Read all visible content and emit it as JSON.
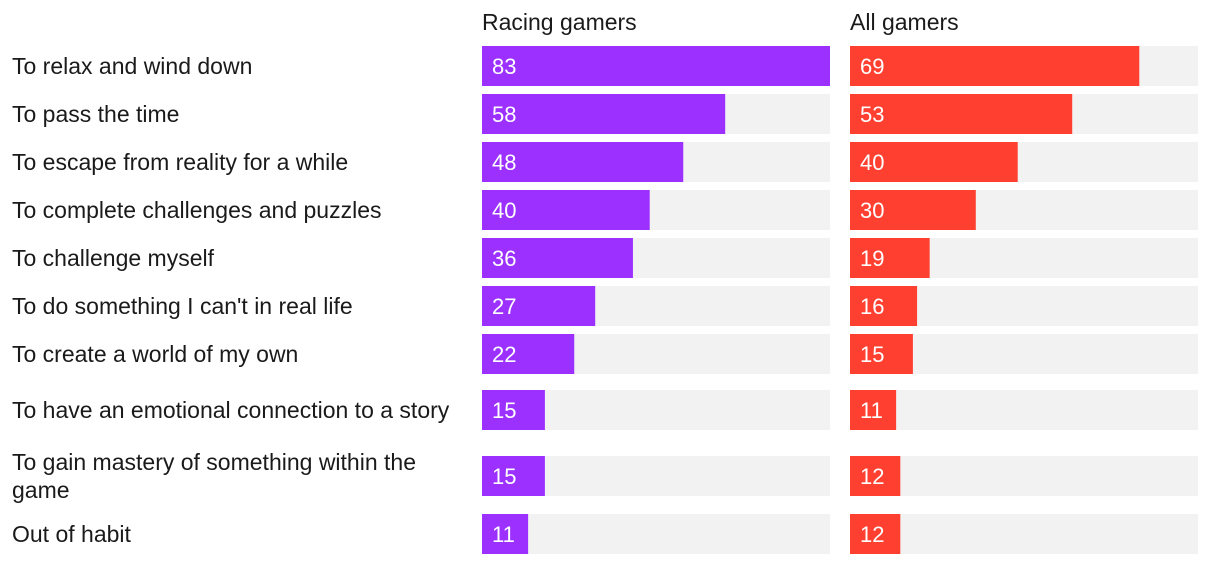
{
  "chart_data": {
    "type": "bar",
    "orientation": "horizontal",
    "title": "",
    "xlabel": "",
    "ylabel": "",
    "xlim": [
      0,
      83
    ],
    "categories": [
      "To relax and wind down",
      "To pass the time",
      "To escape from reality for a while",
      "To complete challenges and puzzles",
      "To challenge myself",
      "To do something I can't in real life",
      "To create a world of my own",
      "To have an emotional connection to a story",
      "To gain mastery of something within the game",
      "Out of habit"
    ],
    "series": [
      {
        "name": "Racing gamers",
        "color": "#9b30ff",
        "values": [
          83,
          58,
          48,
          40,
          36,
          27,
          22,
          15,
          15,
          11
        ]
      },
      {
        "name": "All gamers",
        "color": "#ff4030",
        "values": [
          69,
          53,
          40,
          30,
          19,
          16,
          15,
          11,
          12,
          12
        ]
      }
    ],
    "track_color": "#f2f2f2"
  }
}
